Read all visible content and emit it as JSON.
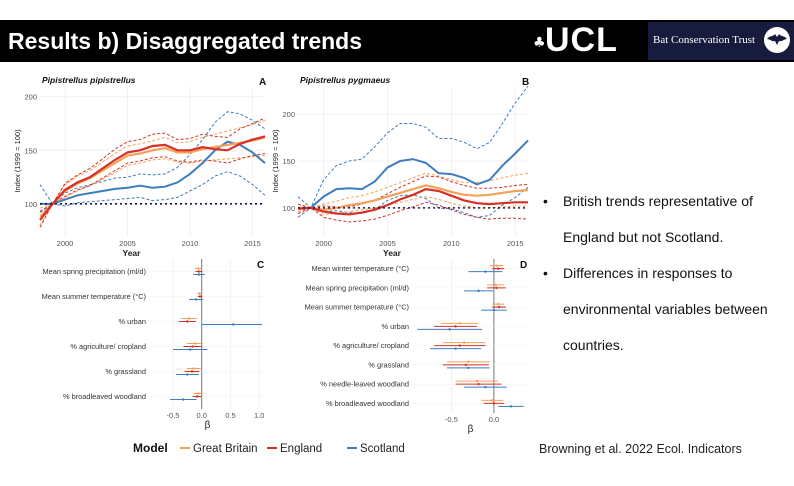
{
  "slide": {
    "title": "Results b) Disaggregated trends",
    "ucl_mark": "♣",
    "ucl_logo": "UCL",
    "bct_name": "Bat Conservation Trust",
    "bullets": [
      "British trends representative of England but not Scotland.",
      "Differences in responses to environmental variables between countries."
    ],
    "citation": "Browning et al. 2022 Ecol. Indicators"
  },
  "colors": {
    "great_britain": "#f4a259",
    "england": "#d73027",
    "scotland": "#3b7dbf",
    "reference": "#1a1a4a"
  },
  "chart_data": [
    {
      "id": "A",
      "type": "line",
      "panel_label": "A",
      "title": "Pipistrellus pipistrellus",
      "xlabel": "Year",
      "ylabel": "Index (1999 = 100)",
      "xlim": [
        1998,
        2016
      ],
      "ylim": [
        70,
        210
      ],
      "xticks": [
        2000,
        2005,
        2010,
        2015
      ],
      "yticks": [
        100,
        150,
        200
      ],
      "reference_line": 100,
      "x": [
        1998,
        1999,
        2000,
        2001,
        2002,
        2003,
        2004,
        2005,
        2006,
        2007,
        2008,
        2009,
        2010,
        2011,
        2012,
        2013,
        2014,
        2015,
        2016
      ],
      "series": [
        {
          "name": "Great Britain",
          "values": [
            88,
            100,
            112,
            119,
            124,
            131,
            138,
            145,
            147,
            150,
            152,
            148,
            148,
            151,
            153,
            155,
            157,
            159,
            162
          ],
          "lower": [
            80,
            100,
            106,
            112,
            117,
            123,
            129,
            136,
            138,
            141,
            142,
            139,
            138,
            140,
            141,
            142,
            143,
            144,
            145
          ],
          "upper": [
            96,
            100,
            118,
            126,
            131,
            139,
            147,
            154,
            156,
            159,
            162,
            157,
            158,
            162,
            165,
            168,
            171,
            174,
            178
          ]
        },
        {
          "name": "England",
          "values": [
            85,
            100,
            113,
            120,
            125,
            133,
            141,
            148,
            150,
            154,
            155,
            150,
            150,
            153,
            151,
            150,
            156,
            160,
            163
          ],
          "lower": [
            78,
            100,
            107,
            113,
            117,
            124,
            131,
            138,
            140,
            143,
            144,
            140,
            139,
            141,
            140,
            138,
            142,
            145,
            147
          ],
          "upper": [
            93,
            100,
            119,
            127,
            133,
            142,
            151,
            158,
            160,
            165,
            166,
            160,
            161,
            165,
            163,
            162,
            170,
            175,
            180
          ]
        },
        {
          "name": "Scotland",
          "values": [
            100,
            100,
            104,
            108,
            110,
            112,
            114,
            115,
            117,
            115,
            116,
            120,
            128,
            138,
            150,
            158,
            155,
            148,
            138
          ],
          "lower": [
            92,
            100,
            98,
            101,
            102,
            103,
            104,
            105,
            106,
            103,
            104,
            106,
            112,
            118,
            126,
            130,
            126,
            118,
            108
          ],
          "upper": [
            118,
            100,
            110,
            115,
            118,
            121,
            124,
            125,
            128,
            127,
            128,
            134,
            146,
            160,
            176,
            186,
            184,
            178,
            170
          ]
        }
      ]
    },
    {
      "id": "B",
      "type": "line",
      "panel_label": "B",
      "title": "Pipistrellus pygmaeus",
      "xlabel": "Year",
      "ylabel": "Index (1999 = 100)",
      "xlim": [
        1998,
        2016
      ],
      "ylim": [
        70,
        230
      ],
      "xticks": [
        2000,
        2005,
        2010,
        2015
      ],
      "yticks": [
        100,
        150,
        200
      ],
      "reference_line": 100,
      "x": [
        1998,
        1999,
        2000,
        2001,
        2002,
        2003,
        2004,
        2005,
        2006,
        2007,
        2008,
        2009,
        2010,
        2011,
        2012,
        2013,
        2014,
        2015,
        2016
      ],
      "series": [
        {
          "name": "Great Britain",
          "values": [
            100,
            100,
            98,
            100,
            103,
            105,
            108,
            112,
            116,
            120,
            124,
            121,
            117,
            114,
            113,
            114,
            116,
            118,
            119
          ],
          "lower": [
            96,
            100,
            93,
            94,
            96,
            98,
            100,
            103,
            106,
            109,
            112,
            109,
            105,
            102,
            100,
            100,
            101,
            102,
            102
          ],
          "upper": [
            104,
            100,
            104,
            107,
            111,
            113,
            117,
            122,
            127,
            132,
            137,
            134,
            130,
            127,
            127,
            129,
            132,
            135,
            137
          ]
        },
        {
          "name": "England",
          "values": [
            99,
            100,
            96,
            94,
            93,
            95,
            98,
            103,
            109,
            114,
            120,
            118,
            113,
            108,
            105,
            104,
            105,
            106,
            106
          ],
          "lower": [
            94,
            100,
            90,
            87,
            85,
            86,
            88,
            92,
            97,
            101,
            106,
            103,
            98,
            93,
            90,
            88,
            89,
            89,
            88
          ],
          "upper": [
            104,
            100,
            102,
            101,
            101,
            104,
            108,
            115,
            122,
            128,
            134,
            133,
            128,
            124,
            121,
            121,
            122,
            124,
            125
          ]
        },
        {
          "name": "Scotland",
          "values": [
            100,
            100,
            112,
            120,
            121,
            120,
            128,
            143,
            150,
            152,
            148,
            137,
            136,
            132,
            125,
            130,
            145,
            158,
            172
          ],
          "lower": [
            90,
            100,
            96,
            97,
            95,
            94,
            98,
            108,
            113,
            114,
            110,
            100,
            99,
            95,
            90,
            92,
            103,
            111,
            122
          ],
          "upper": [
            112,
            100,
            130,
            145,
            150,
            152,
            165,
            180,
            190,
            190,
            186,
            174,
            174,
            170,
            163,
            170,
            190,
            212,
            230
          ]
        }
      ]
    },
    {
      "id": "C",
      "type": "scatter",
      "panel_label": "C",
      "xlabel": "β",
      "xlim": [
        -0.9,
        1.1
      ],
      "xticks": [
        -0.5,
        0.0,
        0.5,
        1.0
      ],
      "xtick_labels": [
        "-0.5",
        "0.0",
        "0.5",
        "1.0"
      ],
      "categories": [
        "Mean spring precipitation (ml/d)",
        "Mean summer temperature (°C)",
        "% urban",
        "% agriculture/ cropland",
        "% grassland",
        "% broadleaved woodland"
      ],
      "series": [
        {
          "name": "Great Britain",
          "estimates": [
            -0.06,
            -0.04,
            -0.22,
            -0.12,
            -0.14,
            -0.06
          ],
          "lower": [
            -0.12,
            -0.08,
            -0.36,
            -0.26,
            -0.26,
            -0.14
          ],
          "upper": [
            0.0,
            0.0,
            -0.08,
            0.02,
            -0.02,
            0.02
          ]
        },
        {
          "name": "England",
          "estimates": [
            -0.05,
            -0.03,
            -0.25,
            -0.16,
            -0.17,
            -0.08
          ],
          "lower": [
            -0.11,
            -0.07,
            -0.4,
            -0.32,
            -0.3,
            -0.16
          ],
          "upper": [
            0.01,
            0.01,
            -0.1,
            0.0,
            -0.04,
            0.0
          ]
        },
        {
          "name": "Scotland",
          "estimates": [
            -0.05,
            -0.1,
            0.55,
            -0.2,
            -0.25,
            -0.32
          ],
          "lower": [
            -0.15,
            -0.22,
            0.0,
            -0.5,
            -0.45,
            -0.55
          ],
          "upper": [
            0.05,
            0.02,
            1.05,
            0.1,
            -0.05,
            -0.09
          ]
        }
      ]
    },
    {
      "id": "D",
      "type": "scatter",
      "panel_label": "D",
      "xlabel": "β",
      "xlim": [
        -0.95,
        0.4
      ],
      "xticks": [
        -0.5,
        0.0
      ],
      "xtick_labels": [
        "-0.5",
        "0.0"
      ],
      "categories": [
        "Mean winter temperature (°C)",
        "Mean spring precipitation (ml/d)",
        "Mean summer temperature (°C)",
        "% urban",
        "% agriculture/ cropland",
        "% grassland",
        "% needle-leaved woodland",
        "% broadleaved woodland"
      ],
      "series": [
        {
          "name": "Great Britain",
          "estimates": [
            0.03,
            0.02,
            0.05,
            -0.4,
            -0.35,
            -0.3,
            -0.2,
            -0.02
          ],
          "lower": [
            -0.05,
            -0.08,
            -0.02,
            -0.62,
            -0.6,
            -0.55,
            -0.45,
            -0.15
          ],
          "upper": [
            0.11,
            0.12,
            0.12,
            -0.18,
            -0.1,
            -0.05,
            0.05,
            0.11
          ]
        },
        {
          "name": "England",
          "estimates": [
            0.05,
            0.03,
            0.06,
            -0.45,
            -0.4,
            -0.33,
            -0.18,
            0.0
          ],
          "lower": [
            -0.02,
            -0.08,
            -0.02,
            -0.7,
            -0.7,
            -0.6,
            -0.45,
            -0.12
          ],
          "upper": [
            0.12,
            0.14,
            0.14,
            -0.2,
            -0.1,
            -0.06,
            0.09,
            0.12
          ]
        },
        {
          "name": "Scotland",
          "estimates": [
            -0.1,
            -0.18,
            0.0,
            -0.52,
            -0.45,
            -0.3,
            -0.1,
            0.2
          ],
          "lower": [
            -0.3,
            -0.35,
            -0.15,
            -0.9,
            -0.75,
            -0.55,
            -0.35,
            0.05
          ],
          "upper": [
            0.1,
            -0.01,
            0.15,
            -0.14,
            -0.15,
            -0.05,
            0.15,
            0.35
          ]
        }
      ]
    }
  ],
  "legend": {
    "title": "Model",
    "items": [
      "Great Britain",
      "England",
      "Scotland"
    ]
  }
}
